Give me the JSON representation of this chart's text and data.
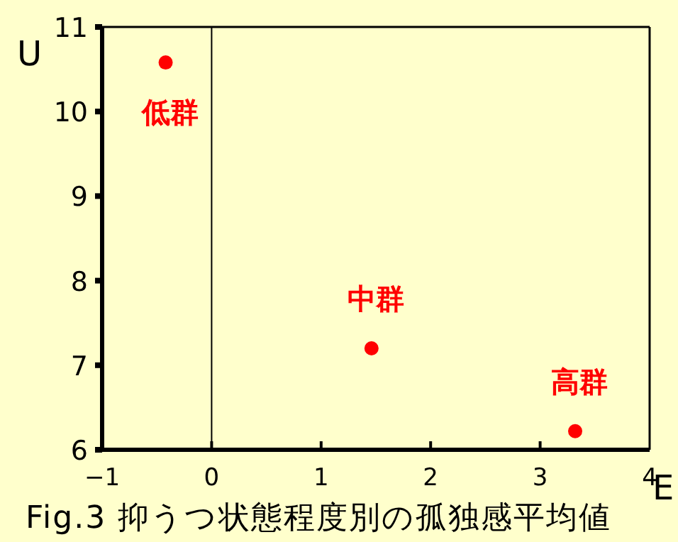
{
  "chart_data": {
    "type": "scatter",
    "title": "Fig.3 抑うつ状態程度別の孤独感平均値",
    "xlabel": "E",
    "ylabel": "U",
    "series": [
      {
        "name": "低群",
        "color": "#ff0000",
        "x": [
          -0.42
        ],
        "values": [
          10.58
        ]
      },
      {
        "name": "中群",
        "color": "#ff0000",
        "x": [
          1.46
        ],
        "values": [
          7.2
        ]
      },
      {
        "name": "高群",
        "color": "#ff0000",
        "x": [
          3.32
        ],
        "values": [
          6.22
        ]
      }
    ],
    "xlim": [
      -1,
      4
    ],
    "xticks": [
      -1,
      0,
      1,
      2,
      3,
      4
    ],
    "ylim": [
      6,
      11
    ],
    "yticks": [
      6,
      7,
      8,
      9,
      10,
      11
    ],
    "ref_lines": [
      {
        "axis": "x",
        "value": 0,
        "color": "#000000"
      }
    ],
    "marker": "circle",
    "grid": false
  }
}
